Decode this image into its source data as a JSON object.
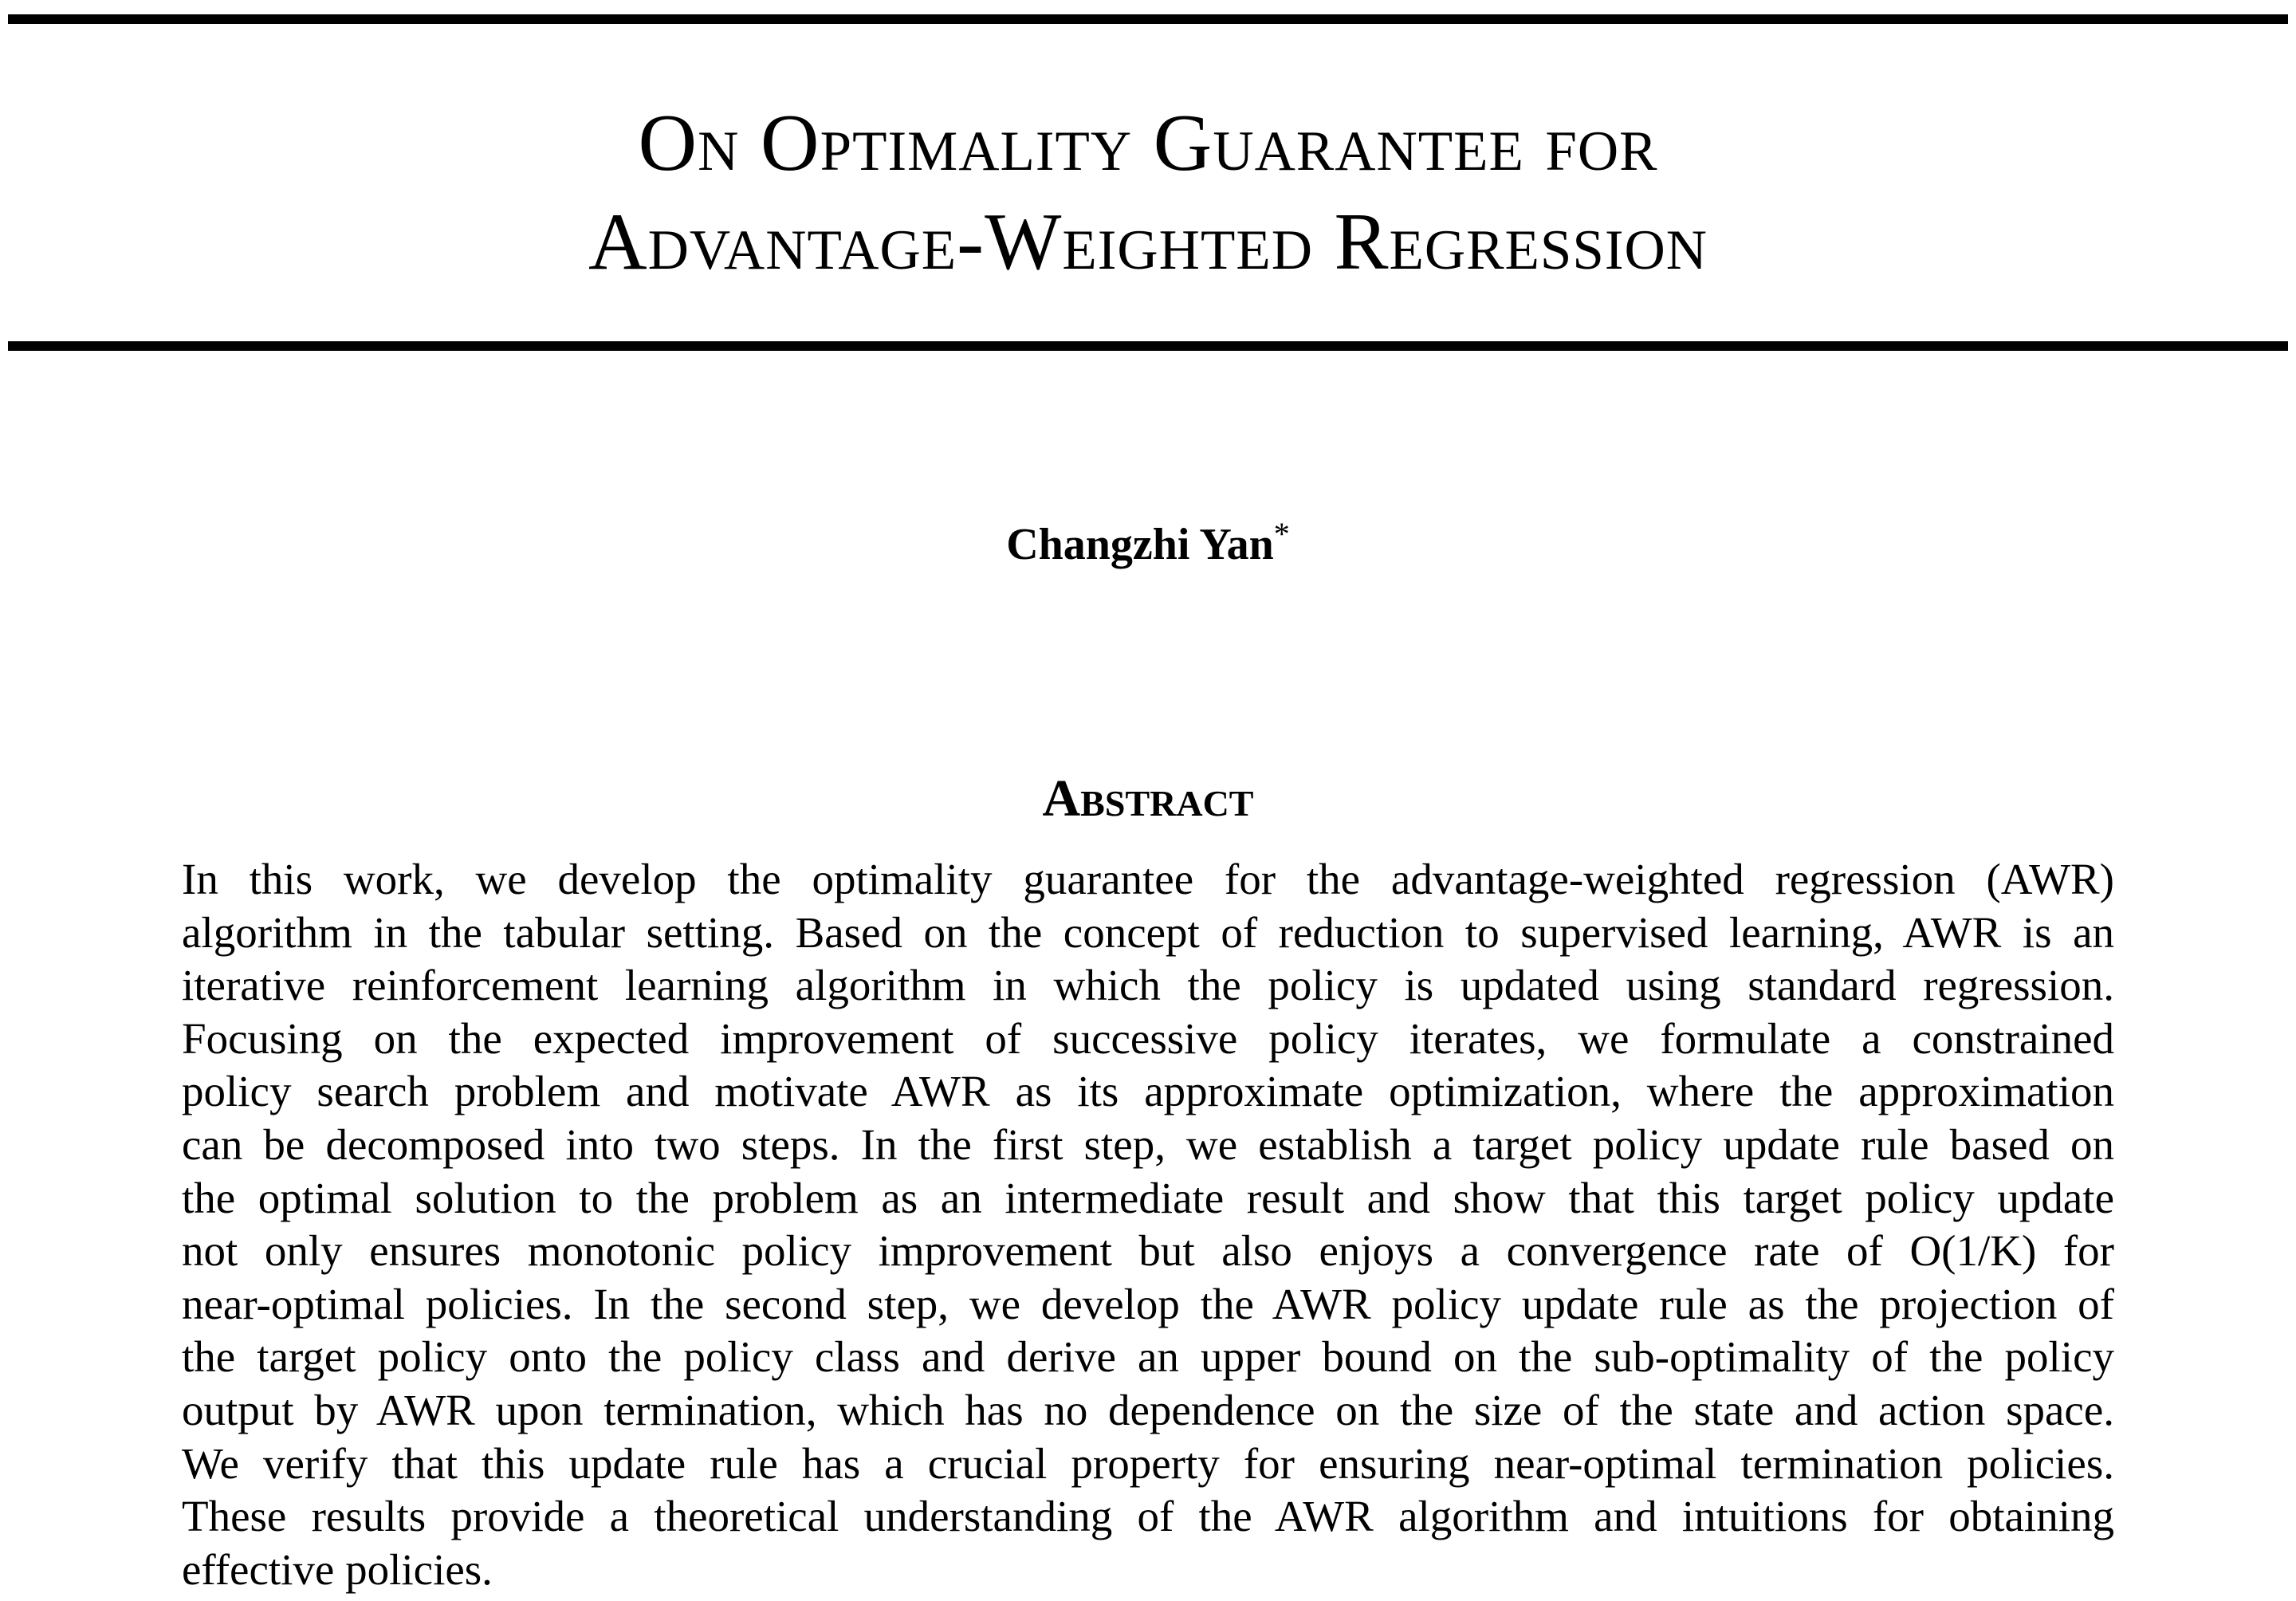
{
  "paper": {
    "title_lines": [
      "On Optimality Guarantee for",
      "Advantage-Weighted Regression"
    ],
    "author": {
      "name": "Changzhi Yan",
      "footnote_mark": "*"
    },
    "abstract": {
      "heading": "Abstract",
      "lines": [
        "In this work, we develop the optimality guarantee for the advantage-weighted regression (AWR)",
        "algorithm in the tabular setting. Based on the concept of reduction to supervised learning, AWR is an",
        "iterative reinforcement learning algorithm in which the policy is updated using standard regression.",
        "Focusing on the expected improvement of successive policy iterates, we formulate a constrained",
        "policy search problem and motivate AWR as its approximate optimization, where the approximation",
        "can be decomposed into two steps. In the first step, we establish a target policy update rule based on",
        "the optimal solution to the problem as an intermediate result and show that this target policy update",
        "not only ensures monotonic policy improvement but also enjoys a convergence rate of O(1/K) for",
        "near-optimal policies. In the second step, we develop the AWR policy update rule as the projection of",
        "the target policy onto the policy class and derive an upper bound on the sub-optimality of the policy",
        "output by AWR upon termination, which has no dependence on the size of the state and action space.",
        "We verify that this update rule has a crucial property for ensuring near-optimal termination policies.",
        "These results provide a theoretical understanding of the AWR algorithm and intuitions for obtaining",
        "effective policies."
      ]
    }
  }
}
